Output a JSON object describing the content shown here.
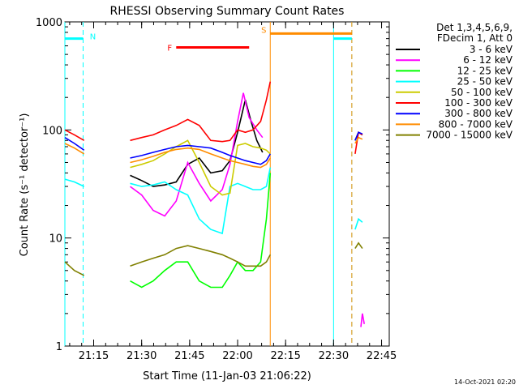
{
  "chart_data": {
    "type": "line",
    "title": "RHESSI Observing Summary Count Rates",
    "xlabel": "Start Time (11-Jan-03 21:06:22)",
    "ylabel": "Count Rate (s⁻¹ detector⁻¹)",
    "yscale": "log",
    "ylim": [
      1,
      1000
    ],
    "xlim": [
      21.1,
      22.79
    ],
    "y_ticks": [
      {
        "v": 1,
        "label": "1"
      },
      {
        "v": 10,
        "label": "10"
      },
      {
        "v": 100,
        "label": "100"
      },
      {
        "v": 1000,
        "label": "1000"
      }
    ],
    "x_ticks": [
      {
        "v": 21.25,
        "label": "21:15"
      },
      {
        "v": 21.5,
        "label": "21:30"
      },
      {
        "v": 21.75,
        "label": "21:45"
      },
      {
        "v": 22.0,
        "label": "22:00"
      },
      {
        "v": 22.25,
        "label": "22:15"
      },
      {
        "v": 22.5,
        "label": "22:30"
      },
      {
        "v": 22.75,
        "label": "22:45"
      }
    ],
    "legend_header": [
      "Det 1,3,4,5,6,9,",
      "FDecim 1, Att 0"
    ],
    "footer": "14-Oct-2021 02:20",
    "flags": [
      {
        "name": "N",
        "color": "#00ffff",
        "y": 700,
        "segments": [
          [
            21.1,
            21.195
          ],
          [
            22.5,
            22.595
          ]
        ]
      },
      {
        "name": "F",
        "color": "#ff0000",
        "y": 580,
        "segments": [
          [
            21.68,
            22.06
          ]
        ]
      },
      {
        "name": "S",
        "color": "#ff8c00",
        "y": 780,
        "segments": [
          [
            22.17,
            22.595
          ]
        ]
      }
    ],
    "night_lines": [
      {
        "x": 21.1,
        "color": "#00ffff",
        "dash": false
      },
      {
        "x": 21.195,
        "color": "#00ffff",
        "dash": true
      },
      {
        "x": 22.5,
        "color": "#00ffff",
        "dash": false
      },
      {
        "x": 22.595,
        "color": "#00ffff",
        "dash": true
      }
    ],
    "saa_lines": [
      {
        "x": 22.17,
        "color": "#ff8c00",
        "dash": false
      },
      {
        "x": 22.595,
        "color": "#ff8c00",
        "dash": true
      }
    ],
    "series": [
      {
        "name": "3 - 6 keV",
        "color": "#000000",
        "x": [
          21.44,
          21.5,
          21.56,
          21.62,
          21.68,
          21.74,
          21.8,
          21.86,
          21.92,
          21.96,
          22.0,
          22.04,
          22.07,
          22.1,
          22.13,
          22.612,
          22.63,
          22.65
        ],
        "y": [
          38,
          34,
          30,
          31,
          33,
          48,
          55,
          40,
          42,
          52,
          95,
          190,
          120,
          80,
          62,
          80,
          95,
          90
        ]
      },
      {
        "name": "6 - 12 keV",
        "color": "#ff00ff",
        "x": [
          21.44,
          21.5,
          21.56,
          21.62,
          21.68,
          21.74,
          21.8,
          21.86,
          21.92,
          21.96,
          22.0,
          22.03,
          22.06,
          22.1,
          22.13,
          22.642,
          22.65,
          22.66
        ],
        "y": [
          30,
          25,
          18,
          16,
          22,
          50,
          32,
          22,
          28,
          48,
          120,
          220,
          130,
          100,
          85,
          1.5,
          2.0,
          1.6
        ]
      },
      {
        "name": "12 - 25 keV",
        "color": "#00ff00",
        "x": [
          21.44,
          21.5,
          21.56,
          21.62,
          21.68,
          21.74,
          21.8,
          21.86,
          21.92,
          21.96,
          22.0,
          22.04,
          22.08,
          22.12,
          22.15,
          22.17
        ],
        "y": [
          4,
          3.5,
          4,
          5,
          6,
          6,
          4,
          3.5,
          3.5,
          4.5,
          6,
          5,
          5,
          6,
          15,
          40
        ]
      },
      {
        "name": "25 - 50 keV",
        "color": "#00ffff",
        "x": [
          21.1,
          21.15,
          21.2,
          21.44,
          21.5,
          21.56,
          21.62,
          21.68,
          21.74,
          21.8,
          21.86,
          21.92,
          21.96,
          22.0,
          22.04,
          22.08,
          22.12,
          22.15,
          22.17,
          22.612,
          22.63,
          22.65
        ],
        "y": [
          35,
          33,
          30,
          32,
          30,
          31,
          33,
          28,
          25,
          15,
          12,
          11,
          30,
          32,
          30,
          28,
          28,
          30,
          45,
          12,
          15,
          14
        ]
      },
      {
        "name": "50 - 100 keV",
        "color": "#cccc00",
        "x": [
          21.44,
          21.5,
          21.56,
          21.62,
          21.68,
          21.74,
          21.8,
          21.86,
          21.92,
          21.96,
          22.0,
          22.04,
          22.08,
          22.12,
          22.15,
          22.17
        ],
        "y": [
          45,
          48,
          52,
          60,
          70,
          80,
          50,
          30,
          25,
          26,
          72,
          75,
          70,
          68,
          65,
          60
        ]
      },
      {
        "name": "100 - 300 keV",
        "color": "#ff0000",
        "x": [
          21.1,
          21.15,
          21.2,
          21.44,
          21.5,
          21.56,
          21.62,
          21.68,
          21.74,
          21.8,
          21.86,
          21.92,
          21.96,
          22.0,
          22.04,
          22.08,
          22.12,
          22.15,
          22.17,
          22.612,
          22.63,
          22.65
        ],
        "y": [
          100,
          90,
          80,
          80,
          85,
          90,
          100,
          110,
          125,
          110,
          80,
          78,
          80,
          100,
          95,
          100,
          120,
          190,
          280,
          60,
          95,
          90
        ]
      },
      {
        "name": "300 - 800 keV",
        "color": "#0000ff",
        "x": [
          21.1,
          21.15,
          21.2,
          21.44,
          21.5,
          21.56,
          21.62,
          21.68,
          21.74,
          21.8,
          21.86,
          21.92,
          21.96,
          22.0,
          22.04,
          22.08,
          22.12,
          22.15,
          22.17,
          22.612,
          22.63,
          22.65
        ],
        "y": [
          85,
          75,
          65,
          55,
          58,
          62,
          66,
          70,
          72,
          70,
          68,
          62,
          58,
          55,
          52,
          50,
          48,
          52,
          60,
          80,
          95,
          92
        ]
      },
      {
        "name": "800 - 7000 keV",
        "color": "#ff8c00",
        "x": [
          21.1,
          21.15,
          21.2,
          21.44,
          21.5,
          21.56,
          21.62,
          21.68,
          21.74,
          21.8,
          21.86,
          21.92,
          21.96,
          22.0,
          22.04,
          22.08,
          22.12,
          22.15,
          22.17,
          22.612,
          22.63,
          22.65
        ],
        "y": [
          75,
          68,
          60,
          50,
          53,
          57,
          62,
          66,
          68,
          66,
          60,
          55,
          52,
          50,
          48,
          46,
          45,
          48,
          55,
          75,
          85,
          82
        ]
      },
      {
        "name": "7000 - 15000 keV",
        "color": "#808000",
        "x": [
          21.1,
          21.15,
          21.2,
          21.44,
          21.5,
          21.56,
          21.62,
          21.68,
          21.74,
          21.8,
          21.86,
          21.92,
          21.96,
          22.0,
          22.04,
          22.08,
          22.12,
          22.15,
          22.17,
          22.612,
          22.63,
          22.65
        ],
        "y": [
          6,
          5,
          4.5,
          5.5,
          6,
          6.5,
          7,
          8,
          8.5,
          8,
          7.5,
          7,
          6.5,
          6,
          5.5,
          5.5,
          5.5,
          6,
          7,
          8,
          9,
          8
        ]
      }
    ]
  }
}
